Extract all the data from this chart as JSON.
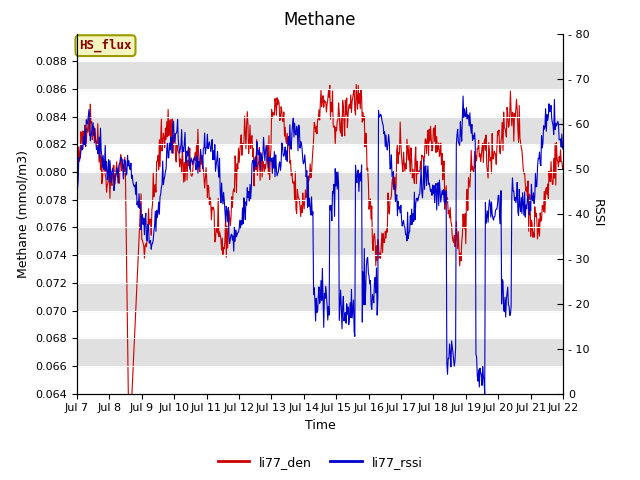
{
  "title": "Methane",
  "xlabel": "Time",
  "ylabel_left": "Methane (mmol/m3)",
  "ylabel_right": "RSSI",
  "ylim_left": [
    0.064,
    0.09
  ],
  "ylim_right": [
    0,
    80
  ],
  "yticks_left": [
    0.064,
    0.066,
    0.068,
    0.07,
    0.072,
    0.074,
    0.076,
    0.078,
    0.08,
    0.082,
    0.084,
    0.086,
    0.088
  ],
  "yticks_right": [
    0,
    10,
    20,
    30,
    40,
    50,
    60,
    70,
    80
  ],
  "xtick_labels": [
    "Jul 7",
    "Jul 8",
    "Jul 9",
    "Jul 10",
    "Jul 11",
    "Jul 12",
    "Jul 13",
    "Jul 14",
    "Jul 15",
    "Jul 16",
    "Jul 17",
    "Jul 18",
    "Jul 19",
    "Jul 20",
    "Jul 21",
    "Jul 22"
  ],
  "line1_color": "#cc0000",
  "line2_color": "#0000cc",
  "legend1_label": "li77_den",
  "legend2_label": "li77_rssi",
  "box_label": "HS_flux",
  "background_color": "#ffffff",
  "band_color": "#e0e0e0",
  "title_fontsize": 12,
  "axis_fontsize": 9,
  "tick_fontsize": 8,
  "legend_fontsize": 9
}
